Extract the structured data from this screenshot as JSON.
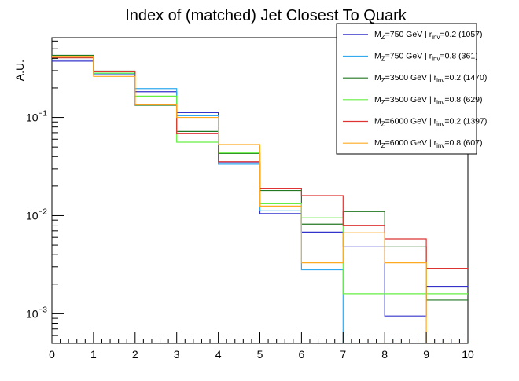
{
  "chart_data": {
    "type": "line",
    "title": "Index of (matched) Jet Closest To Quark",
    "xlabel": "",
    "ylabel": "A.U.",
    "x_bin_edges": [
      0,
      1,
      2,
      3,
      4,
      5,
      6,
      7,
      8,
      9,
      10
    ],
    "xlim": [
      0,
      10
    ],
    "ylim": [
      0.0005,
      0.65
    ],
    "y_scale": "log",
    "x_tick_labels": [
      "0",
      "1",
      "2",
      "3",
      "4",
      "5",
      "6",
      "7",
      "8",
      "9",
      "10"
    ],
    "y_tick_labels": [
      {
        "value": 0.001,
        "base": "10",
        "exp": "−3"
      },
      {
        "value": 0.01,
        "base": "10",
        "exp": "−2"
      },
      {
        "value": 0.1,
        "base": "10",
        "exp": "−1"
      }
    ],
    "legend_position": "top-right",
    "series": [
      {
        "name": "M_Z=750 GeV | r_inv=0.2 (1057)",
        "legend": {
          "pre": "M",
          "sub1": "Z",
          "mid": "=750 GeV | r",
          "sub2": "inv",
          "post": "=0.2 (1057)"
        },
        "color": "#3333cc",
        "values": [
          0.375,
          0.272,
          0.183,
          0.112,
          0.0345,
          0.0105,
          0.0068,
          0.0048,
          0.00095,
          0.0019
        ]
      },
      {
        "name": "M_Z=750 GeV | r_inv=0.8 (361)",
        "legend": {
          "pre": "M",
          "sub1": "Z",
          "mid": "=750 GeV | r",
          "sub2": "inv",
          "post": "=0.8 (361)"
        },
        "color": "#33aaee",
        "values": [
          0.385,
          0.28,
          0.197,
          0.104,
          0.0335,
          0.0112,
          0.0028,
          null,
          null,
          null
        ]
      },
      {
        "name": "M_Z=3500 GeV | r_inv=0.2 (1470)",
        "legend": {
          "pre": "M",
          "sub1": "Z",
          "mid": "=3500 GeV | r",
          "sub2": "inv",
          "post": "=0.2 (1470)"
        },
        "color": "#227722",
        "values": [
          0.43,
          0.297,
          0.133,
          0.072,
          0.043,
          0.018,
          0.0082,
          0.011,
          0.0048,
          0.00138
        ]
      },
      {
        "name": "M_Z=3500 GeV | r_inv=0.8 (629)",
        "legend": {
          "pre": "M",
          "sub1": "Z",
          "mid": "=3500 GeV | r",
          "sub2": "inv",
          "post": "=0.8 (629)"
        },
        "color": "#66ee44",
        "values": [
          0.41,
          0.283,
          0.165,
          0.056,
          0.0435,
          0.0132,
          0.0095,
          0.0016,
          0.0016,
          0.0016
        ]
      },
      {
        "name": "M_Z=6000 GeV | r_inv=0.2 (1397)",
        "legend": {
          "pre": "M",
          "sub1": "Z",
          "mid": "=6000 GeV | r",
          "sub2": "inv",
          "post": "=0.2 (1397)"
        },
        "color": "#dd3333",
        "values": [
          0.405,
          0.292,
          0.135,
          0.069,
          0.0355,
          0.019,
          0.016,
          0.0079,
          0.0058,
          0.0029
        ]
      },
      {
        "name": "M_Z=6000 GeV | r_inv=0.8 (607)",
        "legend": {
          "pre": "M",
          "sub1": "Z",
          "mid": "=6000 GeV | r",
          "sub2": "inv",
          "post": "=0.8 (607)"
        },
        "color": "#ffaa22",
        "values": [
          0.42,
          0.262,
          0.135,
          0.1,
          0.053,
          0.0125,
          0.0033,
          0.0067,
          0.0033,
          null
        ]
      }
    ]
  }
}
